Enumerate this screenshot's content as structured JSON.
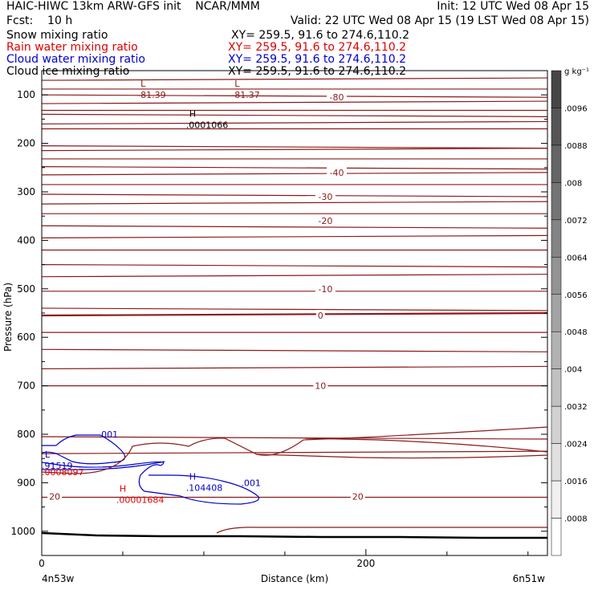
{
  "header": {
    "title": "HAIC-HIWC 13km ARW-GFS init    NCAR/MMM",
    "init": "Init: 12 UTC Wed 08 Apr 15",
    "fcst": "Fcst:    10 h",
    "valid": "Valid: 22 UTC Wed 08 Apr 15 (19 LST Wed 08 Apr 15)",
    "fields": [
      {
        "name": "Snow mixing ratio",
        "xy": "XY= 259.5, 91.6 to 274.6,110.2",
        "color": "#000000"
      },
      {
        "name": "Rain water mixing ratio",
        "xy": "XY= 259.5, 91.6 to 274.6,110.2",
        "color": "#dd0000"
      },
      {
        "name": "Cloud water mixing ratio",
        "xy": "XY= 259.5, 91.6 to 274.6,110.2",
        "color": "#0000cc"
      },
      {
        "name": "Cloud ice mixing ratio",
        "xy": "XY= 259.5, 91.6 to 274.6,110.2",
        "color": "#000000"
      }
    ]
  },
  "chart_data": {
    "type": "cross-section",
    "xlabel": "Distance (km)",
    "ylabel": "Pressure (hPa)",
    "x_ticks": [
      0,
      200
    ],
    "xlim": [
      0,
      312
    ],
    "y_ticks": [
      100,
      200,
      300,
      400,
      500,
      600,
      700,
      800,
      900,
      1000
    ],
    "ylim": [
      50,
      1050
    ],
    "y_scale": "linear",
    "x_end_labels": {
      "left": "4n53w",
      "right": "6n51w"
    },
    "colorbar": {
      "unit": "g kg⁻¹",
      "ticks": [
        ".0096",
        ".0088",
        ".008",
        ".0072",
        ".0064",
        ".0056",
        ".0048",
        ".004",
        ".0032",
        ".0024",
        ".0016",
        ".0008"
      ]
    },
    "temperature_labels": [
      {
        "text": "-80",
        "x": 182,
        "p": 105
      },
      {
        "text": "-40",
        "x": 182,
        "p": 260
      },
      {
        "text": "-30",
        "x": 175,
        "p": 310
      },
      {
        "text": "-20",
        "x": 175,
        "p": 360
      },
      {
        "text": "-10",
        "x": 175,
        "p": 500
      },
      {
        "text": "0",
        "x": 172,
        "p": 555
      },
      {
        "text": "10",
        "x": 172,
        "p": 700
      },
      {
        "text": "20",
        "x": 8,
        "p": 928
      },
      {
        "text": "20",
        "x": 195,
        "p": 928
      }
    ],
    "extrema": [
      {
        "letter": "L",
        "value": "-81.39",
        "x": 59,
        "p": 90,
        "color": "#8b1a1a"
      },
      {
        "letter": "L",
        "value": "-81.37",
        "x": 117,
        "p": 90,
        "color": "#8b1a1a"
      },
      {
        "letter": "H",
        "value": ".0001066",
        "x": 89,
        "p": 152,
        "color": "#000000"
      },
      {
        "letter": "H",
        "value": ".00001684",
        "x": 46,
        "p": 925,
        "color": "#dd0000"
      },
      {
        "letter": "H",
        "value": ".104408",
        "x": 89,
        "p": 900,
        "color": "#0000cc"
      },
      {
        "letter": "L",
        "value": ".91519",
        "x": 0,
        "p": 855,
        "color": "#0000cc"
      }
    ],
    "other_labels": [
      {
        "text": ".001",
        "x": 35,
        "p": 800,
        "color": "#0000cc"
      },
      {
        "text": ".001",
        "x": 123,
        "p": 900,
        "color": "#0000cc"
      },
      {
        "text": ".0008097",
        "x": 0,
        "p": 878,
        "color": "#dd0000"
      }
    ],
    "isotherm_pressures": [
      70,
      88,
      100,
      118,
      132,
      140,
      160,
      170,
      205,
      215,
      232,
      248,
      265,
      285,
      305,
      325,
      345,
      370,
      395,
      420,
      450,
      475,
      505,
      540,
      555,
      590,
      625,
      665,
      700,
      805,
      840,
      930
    ]
  }
}
